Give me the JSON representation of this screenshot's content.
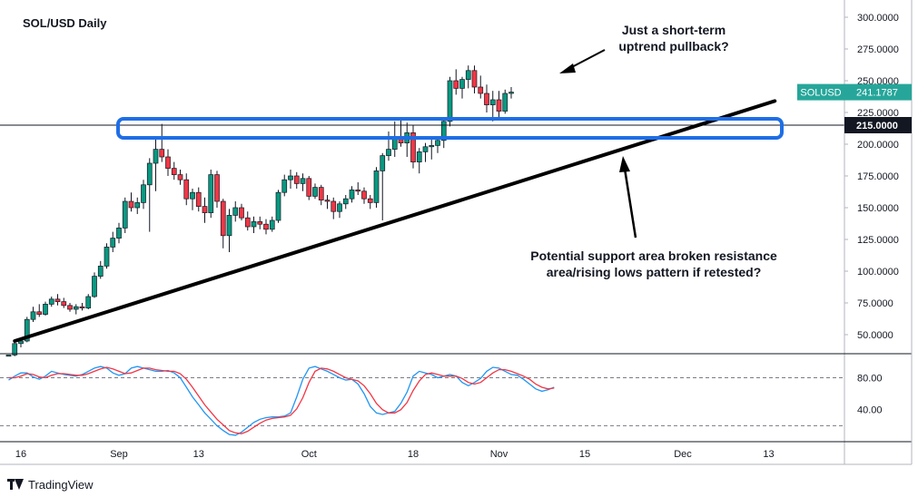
{
  "chart_data": {
    "type": "candlestick",
    "title": "SOL/USD Daily",
    "symbol": "SOLUSD",
    "last_price_label": "241.1787",
    "level_label": "215.0000",
    "horizontal_level": 215,
    "ylim": [
      35,
      310
    ],
    "y_ticks": [
      {
        "value": 300,
        "label": "300.0000"
      },
      {
        "value": 275,
        "label": "275.0000"
      },
      {
        "value": 250,
        "label": "250.0000"
      },
      {
        "value": 225,
        "label": "225.0000"
      },
      {
        "value": 200,
        "label": "200.0000"
      },
      {
        "value": 175,
        "label": "175.0000"
      },
      {
        "value": 150,
        "label": "150.0000"
      },
      {
        "value": 125,
        "label": "125.0000"
      },
      {
        "value": 100,
        "label": "100.0000"
      },
      {
        "value": 75,
        "label": "75.0000"
      },
      {
        "value": 50,
        "label": "50.0000"
      }
    ],
    "x_ticks": [
      {
        "index": 2,
        "label": "16"
      },
      {
        "index": 18,
        "label": "Sep"
      },
      {
        "index": 31,
        "label": "13"
      },
      {
        "index": 49,
        "label": "Oct"
      },
      {
        "index": 66,
        "label": "18"
      },
      {
        "index": 80,
        "label": "Nov"
      },
      {
        "index": 94,
        "label": "15"
      },
      {
        "index": 110,
        "label": "Dec"
      },
      {
        "index": 124,
        "label": "13"
      }
    ],
    "candles": [
      [
        33,
        34,
        33,
        34
      ],
      [
        34,
        45,
        33,
        43
      ],
      [
        43,
        47,
        40,
        45
      ],
      [
        45,
        64,
        44,
        62
      ],
      [
        62,
        72,
        60,
        68
      ],
      [
        68,
        74,
        64,
        66
      ],
      [
        66,
        76,
        65,
        74
      ],
      [
        74,
        80,
        72,
        78
      ],
      [
        78,
        82,
        73,
        76
      ],
      [
        76,
        79,
        71,
        73
      ],
      [
        73,
        75,
        68,
        70
      ],
      [
        70,
        74,
        66,
        72
      ],
      [
        72,
        75,
        69,
        71
      ],
      [
        71,
        82,
        70,
        80
      ],
      [
        80,
        99,
        79,
        96
      ],
      [
        96,
        108,
        94,
        104
      ],
      [
        104,
        122,
        102,
        119
      ],
      [
        119,
        131,
        115,
        126
      ],
      [
        126,
        138,
        122,
        134
      ],
      [
        134,
        158,
        130,
        155
      ],
      [
        155,
        162,
        147,
        150
      ],
      [
        150,
        158,
        145,
        154
      ],
      [
        154,
        172,
        149,
        168
      ],
      [
        168,
        189,
        131,
        185
      ],
      [
        185,
        204,
        163,
        196
      ],
      [
        196,
        216,
        186,
        190
      ],
      [
        190,
        196,
        175,
        181
      ],
      [
        181,
        186,
        172,
        176
      ],
      [
        176,
        180,
        168,
        172
      ],
      [
        172,
        177,
        152,
        157
      ],
      [
        157,
        165,
        148,
        162
      ],
      [
        162,
        166,
        147,
        151
      ],
      [
        151,
        158,
        138,
        146
      ],
      [
        146,
        180,
        142,
        176
      ],
      [
        176,
        179,
        150,
        155
      ],
      [
        155,
        157,
        118,
        128
      ],
      [
        128,
        149,
        115,
        144
      ],
      [
        144,
        155,
        139,
        150
      ],
      [
        150,
        153,
        140,
        142
      ],
      [
        142,
        147,
        132,
        135
      ],
      [
        135,
        143,
        130,
        139
      ],
      [
        139,
        143,
        133,
        137
      ],
      [
        137,
        141,
        129,
        133
      ],
      [
        133,
        143,
        131,
        140
      ],
      [
        140,
        164,
        138,
        162
      ],
      [
        162,
        176,
        159,
        172
      ],
      [
        172,
        180,
        165,
        175
      ],
      [
        175,
        178,
        165,
        169
      ],
      [
        169,
        177,
        163,
        173
      ],
      [
        173,
        175,
        156,
        159
      ],
      [
        159,
        169,
        157,
        166
      ],
      [
        166,
        168,
        152,
        156
      ],
      [
        156,
        160,
        149,
        155
      ],
      [
        155,
        158,
        141,
        147
      ],
      [
        147,
        155,
        142,
        153
      ],
      [
        153,
        160,
        149,
        157
      ],
      [
        157,
        167,
        154,
        164
      ],
      [
        164,
        170,
        160,
        163
      ],
      [
        163,
        166,
        153,
        157
      ],
      [
        157,
        160,
        149,
        154
      ],
      [
        154,
        182,
        150,
        179
      ],
      [
        179,
        193,
        140,
        191
      ],
      [
        191,
        210,
        187,
        196
      ],
      [
        196,
        218,
        190,
        206
      ],
      [
        206,
        219,
        198,
        201
      ],
      [
        201,
        217,
        190,
        209
      ],
      [
        209,
        215,
        181,
        186
      ],
      [
        186,
        197,
        177,
        194
      ],
      [
        194,
        201,
        186,
        198
      ],
      [
        198,
        204,
        188,
        199
      ],
      [
        199,
        205,
        193,
        203
      ],
      [
        203,
        221,
        197,
        218
      ],
      [
        218,
        253,
        214,
        250
      ],
      [
        250,
        259,
        239,
        244
      ],
      [
        244,
        253,
        236,
        251
      ],
      [
        251,
        262,
        244,
        258
      ],
      [
        258,
        262,
        240,
        245
      ],
      [
        245,
        254,
        236,
        240
      ],
      [
        240,
        247,
        225,
        231
      ],
      [
        231,
        242,
        218,
        235
      ],
      [
        235,
        242,
        221,
        226
      ],
      [
        226,
        243,
        224,
        240
      ],
      [
        240,
        245,
        236,
        241
      ]
    ],
    "indicator": {
      "type": "stochastic",
      "ylim": [
        0,
        110
      ],
      "bands": [
        80,
        20
      ],
      "y_ticks": [
        {
          "value": 80,
          "label": "80.00"
        },
        {
          "value": 40,
          "label": "40.00"
        }
      ],
      "k_color": "#2196f3",
      "d_color": "#f23645",
      "k": [
        77,
        82,
        86,
        86,
        81,
        78,
        82,
        88,
        86,
        84,
        83,
        82,
        84,
        88,
        92,
        94,
        92,
        86,
        83,
        85,
        92,
        94,
        92,
        90,
        88,
        88,
        89,
        86,
        80,
        68,
        56,
        46,
        36,
        28,
        20,
        14,
        9,
        8,
        12,
        18,
        24,
        28,
        30,
        31,
        31,
        32,
        36,
        56,
        78,
        92,
        94,
        91,
        88,
        84,
        80,
        77,
        78,
        72,
        60,
        44,
        36,
        34,
        36,
        38,
        48,
        62,
        82,
        88,
        86,
        84,
        80,
        82,
        84,
        82,
        74,
        70,
        74,
        79,
        88,
        93,
        92,
        88,
        84,
        83,
        78,
        72,
        66,
        63,
        65,
        68
      ],
      "d": [
        80,
        80,
        82,
        85,
        84,
        81,
        80,
        83,
        85,
        85,
        84,
        83,
        83,
        85,
        88,
        91,
        93,
        91,
        88,
        85,
        86,
        89,
        92,
        92,
        90,
        89,
        88,
        88,
        85,
        78,
        68,
        57,
        46,
        37,
        28,
        21,
        14,
        11,
        10,
        13,
        18,
        23,
        27,
        29,
        30,
        31,
        33,
        41,
        55,
        74,
        88,
        92,
        91,
        88,
        84,
        80,
        78,
        76,
        70,
        60,
        48,
        40,
        36,
        36,
        40,
        49,
        64,
        76,
        84,
        86,
        84,
        82,
        82,
        82,
        79,
        74,
        72,
        74,
        80,
        86,
        90,
        90,
        88,
        85,
        82,
        78,
        72,
        68,
        66,
        67
      ]
    },
    "trendline": {
      "from": {
        "index": 1,
        "value": 45
      },
      "to": {
        "index": 125,
        "value": 234
      }
    },
    "zone": {
      "from_index": 18,
      "to_index": 126,
      "top": 220,
      "bottom": 205,
      "color": "#1e6ee6"
    },
    "annotations": [
      {
        "text_lines": [
          "Just a short-term",
          "uptrend pullback?"
        ]
      },
      {
        "text_lines": [
          "Potential support area broken resistance",
          "area/rising lows pattern if retested?"
        ]
      }
    ],
    "colors": {
      "up": "#089981",
      "down": "#f23645",
      "label_bg": "#26a69a"
    }
  },
  "brand": {
    "name": "TradingView"
  }
}
